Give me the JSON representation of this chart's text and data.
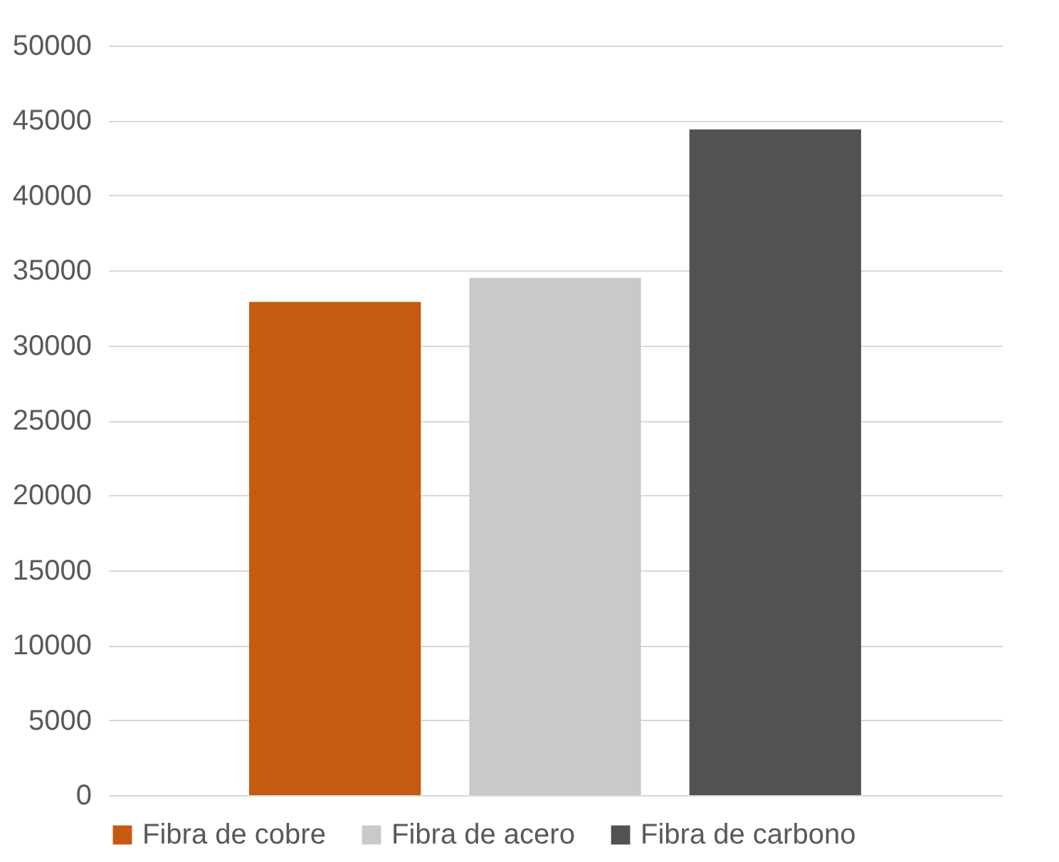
{
  "chart_data": {
    "type": "bar",
    "categories": [
      null
    ],
    "series": [
      {
        "name": "Fibra de cobre",
        "color": "#c55a11",
        "values": [
          32900
        ]
      },
      {
        "name": "Fibra de acero",
        "color": "#c9c9c9",
        "values": [
          34500
        ]
      },
      {
        "name": "Fibra de carbono",
        "color": "#525252",
        "values": [
          44400
        ]
      }
    ],
    "ylim": [
      0,
      50000
    ],
    "yticks": [
      0,
      5000,
      10000,
      15000,
      20000,
      25000,
      30000,
      35000,
      40000,
      45000,
      50000
    ],
    "grid": "y",
    "legend": "bottom",
    "tick_labels": "y"
  }
}
